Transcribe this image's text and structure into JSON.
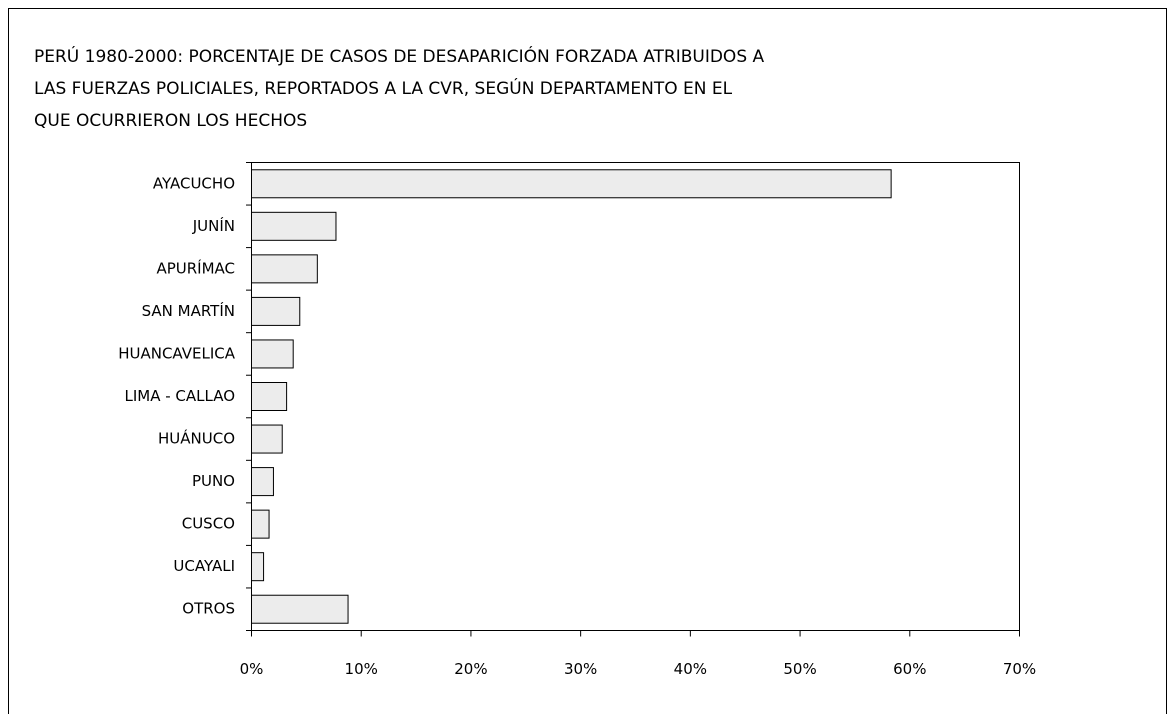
{
  "chart_data": {
    "type": "barh",
    "title": [
      "PERÚ 1980-2000: PORCENTAJE DE CASOS DE DESAPARICIÓN FORZADA ATRIBUIDOS A",
      "LAS FUERZAS POLICIALES, REPORTADOS A LA CVR, SEGÚN DEPARTAMENTO EN EL",
      "QUE OCURRIERON LOS HECHOS"
    ],
    "categories": [
      "AYACUCHO",
      "JUNÍN",
      "APURÍMAC",
      "SAN MARTÍN",
      "HUANCAVELICA",
      "LIMA - CALLAO",
      "HUÁNUCO",
      "PUNO",
      "CUSCO",
      "UCAYALI",
      "OTROS"
    ],
    "values": [
      58.3,
      7.7,
      6.0,
      4.4,
      3.8,
      3.2,
      2.8,
      2.0,
      1.6,
      1.1,
      8.8
    ],
    "color": "#ececec",
    "xlim": [
      0,
      70
    ],
    "xticks": [
      {
        "value": 0,
        "label": "0%"
      },
      {
        "value": 10,
        "label": "10%"
      },
      {
        "value": 20,
        "label": "20%"
      },
      {
        "value": 30,
        "label": "30%"
      },
      {
        "value": 40,
        "label": "40%"
      },
      {
        "value": 50,
        "label": "50%"
      },
      {
        "value": 60,
        "label": "60%"
      },
      {
        "value": 70,
        "label": "70%"
      }
    ],
    "grid": false
  }
}
